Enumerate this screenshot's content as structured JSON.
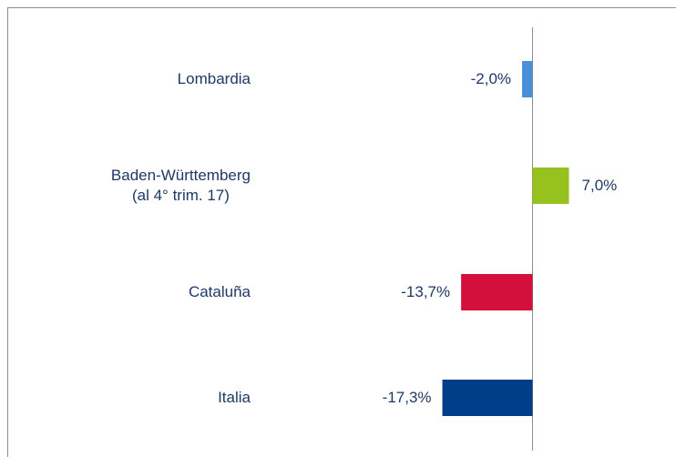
{
  "chart_data": {
    "type": "bar",
    "orientation": "horizontal",
    "categories": [
      "Lombardia",
      "Baden-Württemberg\n(al 4° trim. 17)",
      "Cataluña",
      "Italia"
    ],
    "values": [
      -2.0,
      7.0,
      -13.7,
      -17.3
    ],
    "value_labels": [
      "-2,0%",
      "7,0%",
      "-13,7%",
      "-17,3%"
    ],
    "colors": [
      "#4a8fd8",
      "#96c11f",
      "#d40f3c",
      "#003d89"
    ]
  }
}
